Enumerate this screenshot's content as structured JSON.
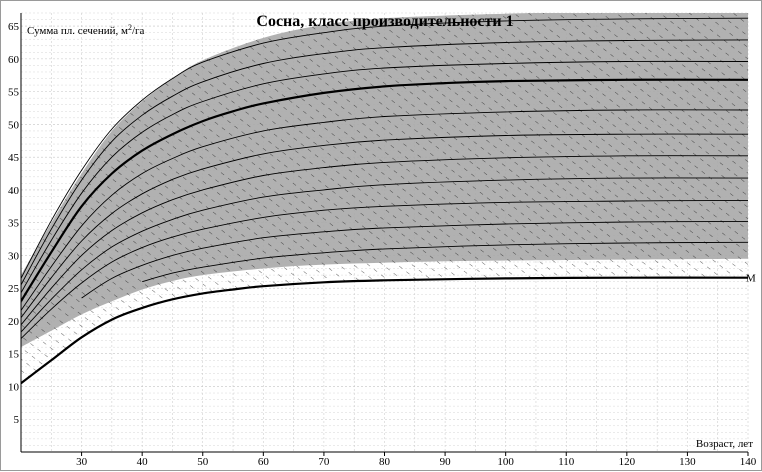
{
  "chart_data": {
    "type": "line",
    "title": "Сосна, класс производительности 1",
    "ylabel_prefix": "Сумма пл. сечений, м",
    "ylabel_sup": "2",
    "ylabel_suffix": "/га",
    "xlabel": "Возраст, лет",
    "xlim": [
      20,
      140
    ],
    "ylim": [
      0,
      67
    ],
    "x_ticks": [
      30,
      40,
      50,
      60,
      70,
      80,
      90,
      100,
      110,
      120,
      130,
      140
    ],
    "y_ticks": [
      5,
      10,
      15,
      20,
      25,
      30,
      35,
      40,
      45,
      50,
      55,
      60,
      65
    ],
    "grid": true,
    "band": {
      "name": "shaded range",
      "color": "#a8a8a8",
      "upper": [
        [
          20,
          27
        ],
        [
          25,
          35
        ],
        [
          30,
          42.5
        ],
        [
          35,
          49
        ],
        [
          40,
          53.5
        ],
        [
          45,
          57
        ],
        [
          50,
          59.8
        ],
        [
          60,
          63.2
        ],
        [
          70,
          65.2
        ],
        [
          80,
          66.2
        ],
        [
          100,
          66.9
        ],
        [
          120,
          67.2
        ],
        [
          140,
          67.3
        ]
      ],
      "lower": [
        [
          20,
          16
        ],
        [
          25,
          18.5
        ],
        [
          30,
          21
        ],
        [
          35,
          23
        ],
        [
          40,
          24.8
        ],
        [
          45,
          26.1
        ],
        [
          50,
          27
        ],
        [
          60,
          28
        ],
        [
          70,
          28.6
        ],
        [
          90,
          29.1
        ],
        [
          110,
          29.3
        ],
        [
          140,
          29.5
        ]
      ]
    },
    "series": [
      {
        "name": "M",
        "values": [
          [
            20,
            10.5
          ],
          [
            25,
            14
          ],
          [
            30,
            17.5
          ],
          [
            35,
            20.2
          ],
          [
            40,
            22
          ],
          [
            45,
            23.3
          ],
          [
            50,
            24.2
          ],
          [
            55,
            24.8
          ],
          [
            60,
            25.3
          ],
          [
            70,
            25.9
          ],
          [
            80,
            26.2
          ],
          [
            100,
            26.5
          ],
          [
            120,
            26.6
          ],
          [
            140,
            26.6
          ]
        ],
        "style": "bold"
      },
      {
        "values": [
          [
            20,
            23
          ],
          [
            25,
            30.5
          ],
          [
            30,
            37.5
          ],
          [
            35,
            42.5
          ],
          [
            40,
            46
          ],
          [
            45,
            48.5
          ],
          [
            50,
            50.5
          ],
          [
            55,
            52
          ],
          [
            60,
            53.2
          ],
          [
            70,
            54.8
          ],
          [
            80,
            55.8
          ],
          [
            90,
            56.3
          ],
          [
            100,
            56.6
          ],
          [
            120,
            56.8
          ],
          [
            140,
            56.8
          ]
        ],
        "style": "bold"
      },
      {
        "values": [
          [
            20,
            26.5
          ],
          [
            25,
            35.3
          ],
          [
            30,
            43
          ],
          [
            35,
            49.3
          ],
          [
            40,
            53.7
          ],
          [
            45,
            57
          ],
          [
            50,
            59.5
          ],
          [
            60,
            62.4
          ],
          [
            70,
            64
          ],
          [
            80,
            65
          ],
          [
            100,
            65.8
          ],
          [
            120,
            66.1
          ],
          [
            140,
            66.2
          ]
        ],
        "style": "thin"
      },
      {
        "values": [
          [
            20,
            25.5
          ],
          [
            25,
            34
          ],
          [
            30,
            41.5
          ],
          [
            35,
            47.4
          ],
          [
            40,
            51.4
          ],
          [
            45,
            54.3
          ],
          [
            50,
            56.5
          ],
          [
            60,
            59.3
          ],
          [
            70,
            60.8
          ],
          [
            80,
            61.7
          ],
          [
            100,
            62.5
          ],
          [
            120,
            62.8
          ],
          [
            140,
            62.9
          ]
        ],
        "style": "thin"
      },
      {
        "values": [
          [
            20,
            24.3
          ],
          [
            25,
            32.3
          ],
          [
            30,
            39.5
          ],
          [
            35,
            45
          ],
          [
            40,
            48.8
          ],
          [
            45,
            51.5
          ],
          [
            50,
            53.5
          ],
          [
            60,
            56.2
          ],
          [
            70,
            57.7
          ],
          [
            80,
            58.6
          ],
          [
            100,
            59.3
          ],
          [
            120,
            59.6
          ],
          [
            140,
            59.6
          ]
        ],
        "style": "thin"
      },
      {
        "values": [
          [
            20,
            21.6
          ],
          [
            25,
            28.3
          ],
          [
            30,
            34.5
          ],
          [
            35,
            39.2
          ],
          [
            40,
            42.5
          ],
          [
            45,
            44.8
          ],
          [
            50,
            46.6
          ],
          [
            60,
            49
          ],
          [
            70,
            50.3
          ],
          [
            80,
            51.2
          ],
          [
            100,
            51.9
          ],
          [
            120,
            52.2
          ],
          [
            140,
            52.2
          ]
        ],
        "style": "thin"
      },
      {
        "values": [
          [
            20,
            20.5
          ],
          [
            25,
            26.6
          ],
          [
            30,
            32.2
          ],
          [
            35,
            36.4
          ],
          [
            40,
            39.4
          ],
          [
            45,
            41.6
          ],
          [
            50,
            43.2
          ],
          [
            60,
            45.5
          ],
          [
            70,
            46.8
          ],
          [
            80,
            47.6
          ],
          [
            100,
            48.3
          ],
          [
            120,
            48.5
          ],
          [
            140,
            48.5
          ]
        ],
        "style": "thin"
      },
      {
        "values": [
          [
            20,
            19.4
          ],
          [
            25,
            25
          ],
          [
            30,
            30
          ],
          [
            35,
            33.8
          ],
          [
            40,
            36.5
          ],
          [
            45,
            38.5
          ],
          [
            50,
            40
          ],
          [
            60,
            42.2
          ],
          [
            70,
            43.4
          ],
          [
            80,
            44.2
          ],
          [
            100,
            44.9
          ],
          [
            120,
            45.2
          ],
          [
            140,
            45.2
          ]
        ],
        "style": "thin"
      },
      {
        "values": [
          [
            20,
            18.3
          ],
          [
            25,
            23.3
          ],
          [
            30,
            27.8
          ],
          [
            35,
            31.3
          ],
          [
            40,
            33.7
          ],
          [
            45,
            35.5
          ],
          [
            50,
            36.9
          ],
          [
            60,
            38.9
          ],
          [
            70,
            40
          ],
          [
            80,
            40.8
          ],
          [
            100,
            41.5
          ],
          [
            120,
            41.8
          ],
          [
            140,
            41.8
          ]
        ],
        "style": "thin"
      },
      {
        "values": [
          [
            20,
            17.3
          ],
          [
            25,
            21.8
          ],
          [
            30,
            25.8
          ],
          [
            35,
            29
          ],
          [
            40,
            31.2
          ],
          [
            45,
            32.8
          ],
          [
            50,
            34
          ],
          [
            60,
            35.8
          ],
          [
            70,
            36.9
          ],
          [
            80,
            37.5
          ],
          [
            100,
            38.1
          ],
          [
            120,
            38.3
          ],
          [
            140,
            38.4
          ]
        ],
        "style": "thin"
      },
      {
        "values": [
          [
            30,
            23.5
          ],
          [
            35,
            26.5
          ],
          [
            40,
            28.5
          ],
          [
            45,
            30
          ],
          [
            50,
            31.1
          ],
          [
            60,
            32.7
          ],
          [
            70,
            33.6
          ],
          [
            80,
            34.2
          ],
          [
            100,
            34.8
          ],
          [
            120,
            35.1
          ],
          [
            140,
            35.2
          ]
        ],
        "style": "thin"
      },
      {
        "values": [
          [
            40,
            26
          ],
          [
            45,
            27.3
          ],
          [
            50,
            28.2
          ],
          [
            60,
            29.6
          ],
          [
            70,
            30.4
          ],
          [
            80,
            31
          ],
          [
            100,
            31.6
          ],
          [
            120,
            31.9
          ],
          [
            140,
            32
          ]
        ],
        "style": "thin"
      }
    ]
  }
}
